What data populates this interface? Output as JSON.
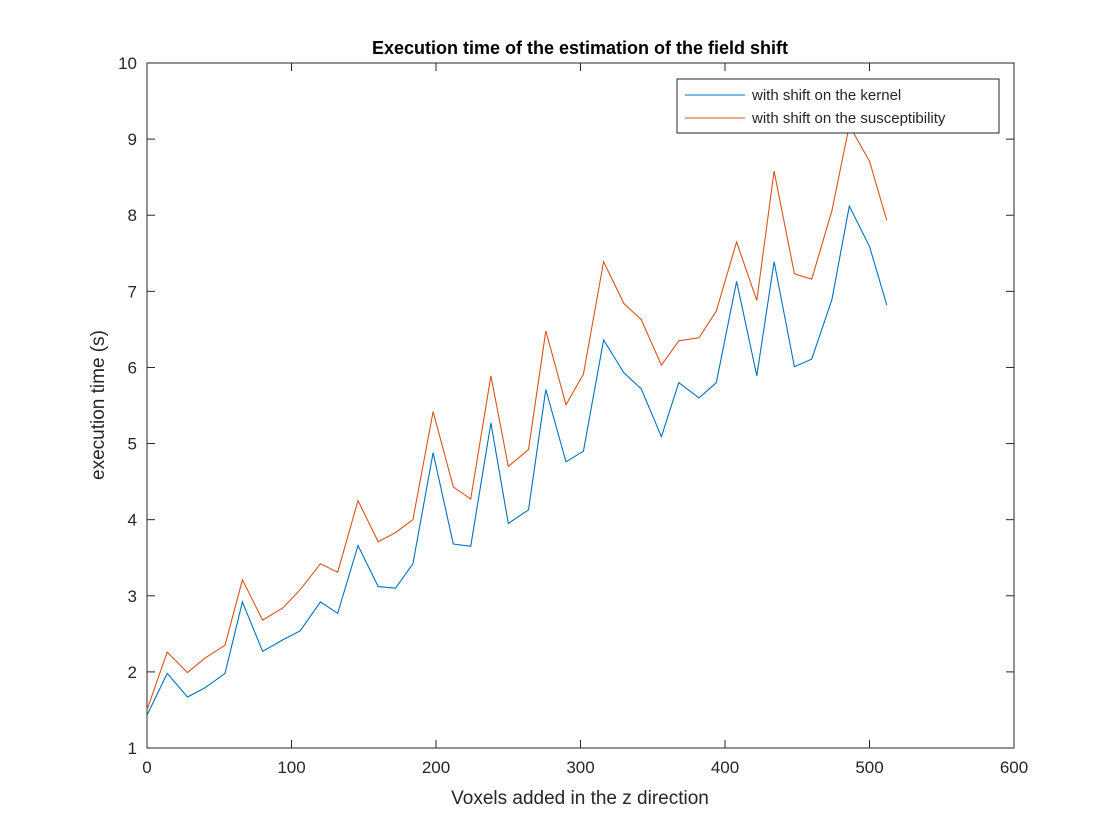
{
  "chart_data": {
    "type": "line",
    "title": "Execution time of the estimation of the field shift",
    "xlabel": "Voxels added in the z direction",
    "ylabel": "execution time (s)",
    "xlim": [
      0,
      600
    ],
    "ylim": [
      1,
      10
    ],
    "xticks": [
      0,
      100,
      200,
      300,
      400,
      500,
      600
    ],
    "yticks": [
      1,
      2,
      3,
      4,
      5,
      6,
      7,
      8,
      9,
      10
    ],
    "grid": false,
    "legend_position": "top-right",
    "x": [
      0,
      14,
      28,
      40,
      54,
      66,
      80,
      94,
      106,
      120,
      132,
      146,
      160,
      172,
      184,
      198,
      212,
      224,
      238,
      250,
      264,
      276,
      290,
      302,
      316,
      330,
      342,
      356,
      368,
      382,
      394,
      408,
      422,
      434,
      448,
      460,
      474,
      486,
      500,
      512
    ],
    "series": [
      {
        "name": "with shift on the kernel",
        "color": "#0072BD",
        "values": [
          1.43,
          1.98,
          1.67,
          1.79,
          1.98,
          2.92,
          2.27,
          2.42,
          2.54,
          2.92,
          2.77,
          3.66,
          3.12,
          3.1,
          3.42,
          4.88,
          3.68,
          3.65,
          5.27,
          3.95,
          4.13,
          5.71,
          4.76,
          4.9,
          6.36,
          5.93,
          5.72,
          5.09,
          5.8,
          5.6,
          5.8,
          7.13,
          5.89,
          7.39,
          6.01,
          6.11,
          6.89,
          8.12,
          7.59,
          6.82
        ]
      },
      {
        "name": "with shift on the susceptibility",
        "color": "#D95319",
        "values": [
          1.5,
          2.26,
          1.99,
          2.18,
          2.35,
          3.21,
          2.68,
          2.84,
          3.08,
          3.42,
          3.31,
          4.25,
          3.71,
          3.83,
          4.0,
          5.42,
          4.43,
          4.27,
          5.89,
          4.7,
          4.92,
          6.48,
          5.51,
          5.91,
          7.39,
          6.84,
          6.63,
          6.03,
          6.35,
          6.39,
          6.74,
          7.65,
          6.88,
          8.58,
          7.23,
          7.16,
          8.06,
          9.18,
          8.71,
          7.93
        ]
      }
    ]
  }
}
